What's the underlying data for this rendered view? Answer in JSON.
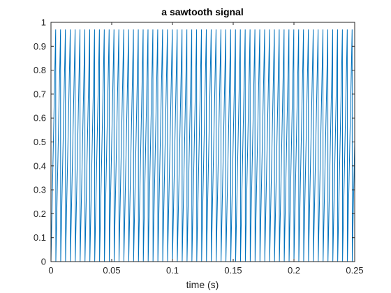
{
  "chart_data": {
    "type": "line",
    "title": "a sawtooth signal",
    "xlabel": "time (s)",
    "ylabel": "",
    "xlim": [
      0,
      0.25
    ],
    "ylim": [
      0,
      1
    ],
    "x_ticks": [
      "0",
      "0.05",
      "0.1",
      "0.15",
      "0.2",
      "0.25"
    ],
    "y_ticks": [
      "0",
      "0.1",
      "0.2",
      "0.3",
      "0.4",
      "0.5",
      "0.6",
      "0.7",
      "0.8",
      "0.9",
      "1"
    ],
    "grid": false,
    "series": [
      {
        "color": "#0072BD",
        "waveform": "sawtooth",
        "period_s": 0.004,
        "peak": 0.97,
        "min": 0
      }
    ]
  }
}
